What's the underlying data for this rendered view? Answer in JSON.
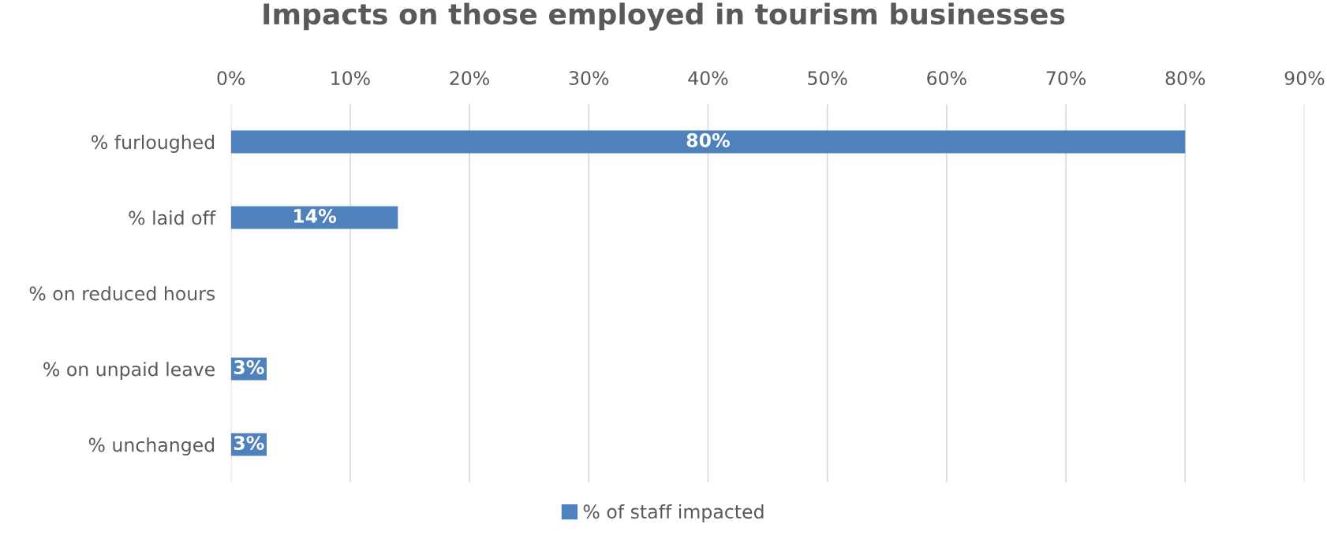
{
  "chart_data": {
    "type": "bar",
    "orientation": "horizontal",
    "title": "Impacts on those employed in tourism businesses",
    "categories": [
      "% furloughed",
      "% laid off",
      "% on reduced hours",
      "% on unpaid leave",
      "% unchanged"
    ],
    "series": [
      {
        "name": "% of staff impacted",
        "color": "#4f81bd",
        "values": [
          80,
          14,
          null,
          3,
          3
        ],
        "value_labels": [
          "80%",
          "14%",
          null,
          "3%",
          "3%"
        ]
      }
    ],
    "xlim": [
      0,
      90
    ],
    "xticks": [
      {
        "value": 0,
        "label": "0%"
      },
      {
        "value": 10,
        "label": "10%"
      },
      {
        "value": 20,
        "label": "20%"
      },
      {
        "value": 30,
        "label": "30%"
      },
      {
        "value": 40,
        "label": "40%"
      },
      {
        "value": 50,
        "label": "50%"
      },
      {
        "value": 60,
        "label": "60%"
      },
      {
        "value": 70,
        "label": "70%"
      },
      {
        "value": 80,
        "label": "80%"
      },
      {
        "value": 90,
        "label": "90%"
      }
    ],
    "grid": "x",
    "legend": "bottom"
  }
}
